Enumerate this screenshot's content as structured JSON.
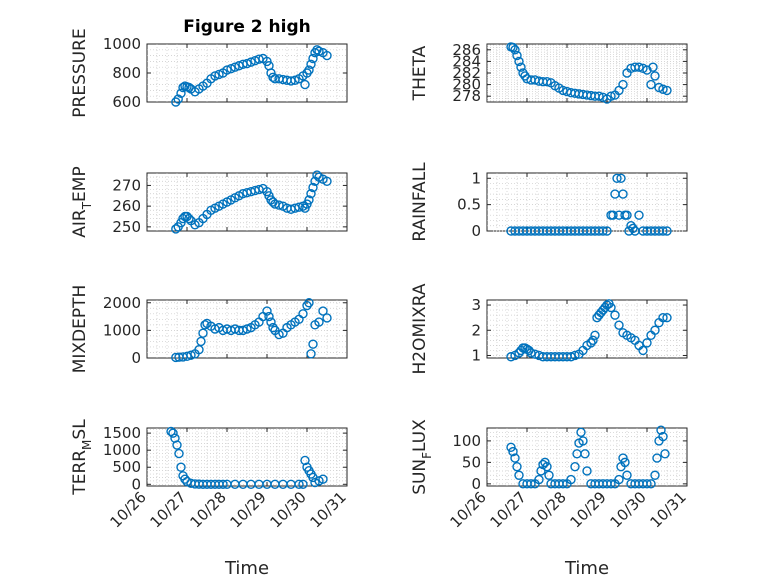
{
  "chart_data": [
    {
      "type": "scatter",
      "id": "pressure",
      "title": "Figure 2 high",
      "ylabel": "PRESSURE",
      "ylabel_sub": "",
      "xlabel": "",
      "xlim": [
        0,
        5
      ],
      "ylim": [
        600,
        1000
      ],
      "yticks": [
        600,
        800,
        1000
      ],
      "xticks": [],
      "x": [
        0.72,
        0.78,
        0.85,
        0.9,
        0.95,
        1.0,
        1.05,
        1.1,
        1.2,
        1.3,
        1.4,
        1.5,
        1.6,
        1.7,
        1.8,
        1.9,
        2.0,
        2.1,
        2.2,
        2.3,
        2.4,
        2.5,
        2.6,
        2.7,
        2.8,
        2.9,
        3.0,
        3.05,
        3.1,
        3.15,
        3.2,
        3.3,
        3.4,
        3.5,
        3.6,
        3.7,
        3.8,
        3.9,
        3.95,
        4.0,
        4.05,
        4.1,
        4.15,
        4.2,
        4.25,
        4.3,
        4.4,
        4.5
      ],
      "y": [
        600,
        620,
        660,
        700,
        710,
        705,
        700,
        690,
        670,
        690,
        710,
        730,
        760,
        780,
        790,
        800,
        820,
        830,
        840,
        850,
        860,
        865,
        875,
        885,
        895,
        900,
        880,
        850,
        800,
        770,
        760,
        760,
        755,
        750,
        745,
        750,
        760,
        780,
        720,
        800,
        820,
        860,
        900,
        940,
        960,
        950,
        940,
        920
      ]
    },
    {
      "type": "scatter",
      "id": "theta",
      "title": "",
      "ylabel": "THETA",
      "ylabel_sub": "",
      "xlabel": "",
      "xlim": [
        0,
        5
      ],
      "ylim": [
        277,
        287
      ],
      "yticks": [
        278,
        280,
        282,
        284,
        286
      ],
      "xticks": [],
      "x": [
        0.6,
        0.65,
        0.7,
        0.75,
        0.8,
        0.85,
        0.9,
        0.95,
        1.0,
        1.1,
        1.2,
        1.3,
        1.4,
        1.5,
        1.6,
        1.7,
        1.8,
        1.9,
        2.0,
        2.1,
        2.2,
        2.3,
        2.4,
        2.5,
        2.6,
        2.7,
        2.8,
        2.9,
        3.0,
        3.1,
        3.2,
        3.3,
        3.4,
        3.5,
        3.6,
        3.7,
        3.8,
        3.9,
        4.0,
        4.1,
        4.15,
        4.2,
        4.3,
        4.4,
        4.5
      ],
      "y": [
        286.5,
        286.4,
        286,
        285,
        284,
        283,
        282,
        281.5,
        281,
        280.8,
        280.8,
        280.6,
        280.5,
        280.5,
        280.3,
        279.8,
        279.4,
        279,
        278.8,
        278.6,
        278.5,
        278.4,
        278.3,
        278.2,
        278.1,
        278,
        278,
        277.8,
        277.5,
        278,
        278.2,
        279,
        280,
        282,
        282.8,
        283,
        283,
        282.8,
        282.5,
        280,
        283,
        281.5,
        279.5,
        279.2,
        279
      ]
    },
    {
      "type": "scatter",
      "id": "air_temp",
      "title": "",
      "ylabel": "AIR",
      "ylabel_sub": "T",
      "ylabel_tail": "EMP",
      "xlabel": "",
      "xlim": [
        0,
        5
      ],
      "ylim": [
        248,
        276
      ],
      "yticks": [
        250,
        260,
        270
      ],
      "xticks": [],
      "x": [
        0.72,
        0.78,
        0.85,
        0.9,
        0.95,
        1.0,
        1.05,
        1.1,
        1.2,
        1.3,
        1.4,
        1.5,
        1.6,
        1.7,
        1.8,
        1.9,
        2.0,
        2.1,
        2.2,
        2.3,
        2.4,
        2.5,
        2.6,
        2.7,
        2.8,
        2.9,
        3.0,
        3.05,
        3.1,
        3.15,
        3.2,
        3.3,
        3.4,
        3.5,
        3.6,
        3.7,
        3.8,
        3.9,
        3.95,
        4.0,
        4.05,
        4.1,
        4.15,
        4.2,
        4.25,
        4.3,
        4.4,
        4.5
      ],
      "y": [
        249,
        250,
        252,
        254,
        255,
        255,
        254,
        253,
        251,
        252,
        254,
        256,
        258,
        259,
        260,
        261,
        262,
        263,
        264,
        265,
        266,
        266.5,
        267,
        267.5,
        268,
        268.5,
        267,
        265,
        263,
        262,
        261,
        260.5,
        260,
        259,
        258.5,
        259,
        259.5,
        260,
        259,
        261,
        263,
        266,
        269,
        272,
        275,
        274,
        273,
        272
      ]
    },
    {
      "type": "scatter",
      "id": "rainfall",
      "title": "",
      "ylabel": "RAINFALL",
      "ylabel_sub": "",
      "xlabel": "",
      "xlim": [
        0,
        5
      ],
      "ylim": [
        0,
        1.1
      ],
      "yticks": [
        0,
        0.5,
        1
      ],
      "xticks": [],
      "x": [
        0.6,
        0.7,
        0.8,
        0.9,
        1.0,
        1.1,
        1.2,
        1.3,
        1.4,
        1.5,
        1.6,
        1.7,
        1.8,
        1.9,
        2.0,
        2.1,
        2.2,
        2.3,
        2.4,
        2.5,
        2.6,
        2.7,
        2.8,
        2.9,
        3.0,
        3.1,
        3.15,
        3.2,
        3.25,
        3.3,
        3.35,
        3.4,
        3.45,
        3.5,
        3.55,
        3.6,
        3.65,
        3.7,
        3.8,
        3.9,
        4.0,
        4.1,
        4.2,
        4.3,
        4.4,
        4.5
      ],
      "y": [
        0,
        0,
        0,
        0,
        0,
        0,
        0,
        0,
        0,
        0,
        0,
        0,
        0,
        0,
        0,
        0,
        0,
        0,
        0,
        0,
        0,
        0,
        0,
        0,
        0,
        0.3,
        0.3,
        0.7,
        1.0,
        0.3,
        1.0,
        0.7,
        0.3,
        0.3,
        0,
        0.1,
        0.05,
        0,
        0.3,
        0,
        0,
        0,
        0,
        0,
        0,
        0
      ]
    },
    {
      "type": "scatter",
      "id": "mixdepth",
      "title": "",
      "ylabel": "MIXDEPTH",
      "ylabel_sub": "",
      "xlabel": "",
      "xlim": [
        0,
        5
      ],
      "ylim": [
        0,
        2100
      ],
      "yticks": [
        0,
        1000,
        2000
      ],
      "xticks": [],
      "x": [
        0.72,
        0.8,
        0.9,
        1.0,
        1.1,
        1.2,
        1.3,
        1.35,
        1.4,
        1.45,
        1.5,
        1.6,
        1.7,
        1.8,
        1.9,
        2.0,
        2.1,
        2.2,
        2.3,
        2.4,
        2.5,
        2.6,
        2.7,
        2.8,
        2.9,
        3.0,
        3.05,
        3.1,
        3.15,
        3.2,
        3.3,
        3.4,
        3.5,
        3.6,
        3.7,
        3.8,
        3.9,
        4.0,
        4.05,
        4.1,
        4.15,
        4.2,
        4.3,
        4.4,
        4.5
      ],
      "y": [
        20,
        30,
        40,
        60,
        100,
        150,
        300,
        600,
        900,
        1200,
        1250,
        1150,
        1050,
        1100,
        1000,
        1050,
        1000,
        1050,
        1000,
        1000,
        1050,
        1100,
        1200,
        1300,
        1500,
        1700,
        1500,
        1300,
        1100,
        1000,
        850,
        900,
        1100,
        1200,
        1300,
        1400,
        1600,
        1900,
        2000,
        150,
        500,
        1200,
        1300,
        1700,
        1450
      ]
    },
    {
      "type": "scatter",
      "id": "h2omixra",
      "title": "",
      "ylabel": "H2OMIXRA",
      "ylabel_sub": "",
      "xlabel": "",
      "xlim": [
        0,
        5
      ],
      "ylim": [
        0.9,
        3.2
      ],
      "yticks": [
        1,
        2,
        3
      ],
      "xticks": [],
      "x": [
        0.6,
        0.7,
        0.8,
        0.85,
        0.9,
        0.95,
        1.0,
        1.05,
        1.1,
        1.2,
        1.3,
        1.4,
        1.5,
        1.6,
        1.7,
        1.8,
        1.9,
        2.0,
        2.1,
        2.2,
        2.3,
        2.4,
        2.5,
        2.6,
        2.65,
        2.7,
        2.75,
        2.8,
        2.85,
        2.9,
        2.95,
        3.0,
        3.05,
        3.1,
        3.2,
        3.3,
        3.4,
        3.5,
        3.6,
        3.7,
        3.8,
        3.9,
        4.0,
        4.1,
        4.2,
        4.3,
        4.4,
        4.5
      ],
      "y": [
        0.95,
        1.0,
        1.1,
        1.2,
        1.3,
        1.3,
        1.25,
        1.2,
        1.1,
        1.05,
        1.0,
        0.95,
        0.95,
        0.95,
        0.95,
        0.95,
        0.95,
        0.95,
        0.95,
        1.0,
        1.05,
        1.2,
        1.4,
        1.5,
        1.6,
        1.8,
        2.5,
        2.6,
        2.7,
        2.8,
        2.9,
        3.0,
        3.05,
        2.9,
        2.6,
        2.2,
        1.9,
        1.8,
        1.7,
        1.6,
        1.4,
        1.2,
        1.5,
        1.8,
        2.0,
        2.3,
        2.5,
        2.5
      ]
    },
    {
      "type": "scatter",
      "id": "terr_msl",
      "title": "",
      "ylabel": "TERR",
      "ylabel_sub": "M",
      "ylabel_tail": "SL",
      "xlabel": "Time",
      "xlim": [
        0,
        5
      ],
      "ylim": [
        -50,
        1650
      ],
      "yticks": [
        0,
        500,
        1000,
        1500
      ],
      "xticks": [
        "10/26",
        "10/27",
        "10/28",
        "10/29",
        "10/30",
        "10/31"
      ],
      "x": [
        0.6,
        0.65,
        0.7,
        0.75,
        0.8,
        0.85,
        0.9,
        0.95,
        1.0,
        1.1,
        1.2,
        1.3,
        1.4,
        1.5,
        1.6,
        1.7,
        1.8,
        1.9,
        2.0,
        2.2,
        2.4,
        2.6,
        2.8,
        3.0,
        3.2,
        3.4,
        3.6,
        3.8,
        3.9,
        3.95,
        4.0,
        4.05,
        4.1,
        4.15,
        4.2,
        4.3,
        4.4
      ],
      "y": [
        1550,
        1500,
        1350,
        1150,
        900,
        500,
        250,
        150,
        80,
        30,
        10,
        5,
        0,
        0,
        0,
        0,
        0,
        0,
        0,
        0,
        0,
        0,
        0,
        0,
        0,
        0,
        0,
        0,
        0,
        700,
        500,
        400,
        300,
        200,
        50,
        100,
        150
      ]
    },
    {
      "type": "scatter",
      "id": "sun_flux",
      "title": "",
      "ylabel": "SUN",
      "ylabel_sub": "F",
      "ylabel_tail": "LUX",
      "xlabel": "Time",
      "xlim": [
        0,
        5
      ],
      "ylim": [
        -5,
        130
      ],
      "yticks": [
        0,
        50,
        100
      ],
      "xticks": [
        "10/26",
        "10/27",
        "10/28",
        "10/29",
        "10/30",
        "10/31"
      ],
      "x": [
        0.6,
        0.65,
        0.7,
        0.75,
        0.8,
        0.9,
        1.0,
        1.1,
        1.2,
        1.3,
        1.35,
        1.4,
        1.45,
        1.5,
        1.55,
        1.6,
        1.7,
        1.8,
        1.9,
        2.0,
        2.1,
        2.2,
        2.25,
        2.3,
        2.35,
        2.4,
        2.45,
        2.5,
        2.6,
        2.7,
        2.8,
        2.9,
        3.0,
        3.1,
        3.2,
        3.3,
        3.35,
        3.4,
        3.45,
        3.5,
        3.6,
        3.7,
        3.8,
        3.9,
        4.0,
        4.1,
        4.2,
        4.25,
        4.3,
        4.35,
        4.4,
        4.45
      ],
      "y": [
        85,
        75,
        60,
        40,
        20,
        0,
        0,
        0,
        0,
        10,
        30,
        45,
        50,
        40,
        20,
        0,
        0,
        0,
        0,
        0,
        10,
        40,
        70,
        95,
        120,
        100,
        70,
        30,
        0,
        0,
        0,
        0,
        0,
        0,
        0,
        10,
        40,
        60,
        50,
        20,
        0,
        0,
        0,
        0,
        0,
        0,
        20,
        60,
        100,
        125,
        110,
        70
      ]
    }
  ]
}
